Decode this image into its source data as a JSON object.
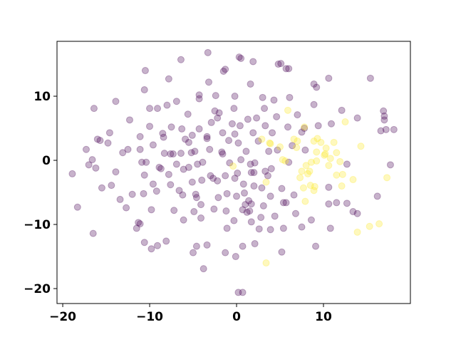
{
  "chart_data": {
    "type": "scatter",
    "xlim": [
      -20.66,
      20.0
    ],
    "ylim": [
      -22.33,
      18.56
    ],
    "xticks": [
      {
        "value": -20,
        "label": "−20"
      },
      {
        "value": -10,
        "label": "−10"
      },
      0,
      10
    ],
    "yticks": [
      {
        "value": -20,
        "label": "−20"
      },
      {
        "value": -10,
        "label": "−10"
      },
      0,
      10
    ],
    "series": [
      {
        "color": "#440154",
        "x": [
          -18.9,
          -18.3,
          -16.5,
          -16.4,
          -16.0,
          -15.7,
          -17.3,
          -17.0,
          -16.6,
          -16.2,
          -15.5,
          -14.6,
          -14.8,
          -14.4,
          -13.9,
          -13.9,
          -13.4,
          -13.1,
          -12.7,
          -12.3,
          -12.5,
          -12.0,
          -11.5,
          -11.3,
          -11.1,
          -11.1,
          -11.1,
          -10.9,
          -10.7,
          -10.6,
          -10.6,
          -10.5,
          -10.6,
          -10.4,
          -10.0,
          -10.0,
          -9.8,
          -9.8,
          -9.6,
          -9.6,
          -9.2,
          -9.1,
          -9.1,
          -8.9,
          -8.7,
          -8.5,
          -8.4,
          -8.3,
          -8.1,
          -8.0,
          -7.8,
          -7.8,
          -7.6,
          -7.6,
          -7.5,
          -7.3,
          -7.2,
          -6.9,
          -6.9,
          -6.6,
          -6.4,
          -6.4,
          -6.3,
          -6.2,
          -6.1,
          -6.1,
          -5.9,
          -5.6,
          -5.5,
          -5.5,
          -5.2,
          -5.1,
          -5.1,
          -5.0,
          -4.9,
          -4.8,
          -4.7,
          -4.6,
          -4.6,
          -4.5,
          -4.3,
          -4.3,
          -4.3,
          -4.1,
          -4.1,
          -4.0,
          -3.9,
          -3.8,
          -3.4,
          -3.4,
          -3.4,
          -3.3,
          -3.2,
          -3.1,
          -3.0,
          -2.9,
          -2.7,
          -2.6,
          -2.5,
          -2.4,
          -2.2,
          -2.2,
          -2.1,
          -2.0,
          -1.7,
          -1.6,
          -1.6,
          -1.5,
          -1.3,
          -1.3,
          -1.3,
          -1.2,
          -1.1,
          -1.1,
          -0.9,
          -0.8,
          -0.5,
          -0.3,
          -0.3,
          -0.2,
          -0.2,
          -0.2,
          -0.1,
          0,
          0.1,
          0.2,
          0.2,
          0.3,
          0.5,
          0.4,
          0.5,
          0.7,
          0.7,
          0.7,
          0.8,
          0.9,
          1.0,
          1.1,
          1.2,
          1.3,
          1.4,
          1.5,
          1.6,
          1.6,
          1.7,
          1.7,
          1.7,
          1.9,
          1.9,
          2.0,
          2.0,
          2.1,
          2.1,
          2.3,
          2.5,
          2.6,
          2.8,
          2.9,
          3.0,
          3.1,
          3.2,
          3.3,
          3.3,
          3.6,
          3.7,
          3.9,
          3.9,
          4.0,
          4.1,
          4.3,
          4.4,
          4.6,
          4.7,
          4.8,
          5.1,
          5.2,
          5.2,
          5.4,
          5.4,
          5.7,
          5.7,
          6.0,
          5.9,
          6.0,
          6.1,
          6.4,
          6.6,
          6.8,
          7.0,
          7.5,
          7.5,
          7.8,
          7.9,
          8.6,
          8.9,
          9.1,
          9.2,
          8.9,
          9.4,
          10.6,
          10.6,
          10.8,
          10.6,
          10.9,
          11.5,
          12.1,
          12.7,
          12.7,
          13.4,
          13.9,
          13.9,
          15.4,
          16.2,
          16.6,
          16.9,
          17.0,
          17.0,
          17.2,
          17.7,
          18.1
        ],
        "values": [
          -2.1,
          -7.3,
          -11.4,
          8.1,
          3.3,
          3.1,
          1.7,
          -0.7,
          0.1,
          -1.2,
          -4.3,
          4.3,
          2.7,
          -3.9,
          9.2,
          -1.8,
          -6.1,
          1.2,
          -7.4,
          6.3,
          1.7,
          -5.3,
          -10.6,
          -9.7,
          -9.9,
          3.7,
          1.7,
          -0.3,
          -5.2,
          -2.3,
          -12.8,
          14.0,
          11.0,
          -0.3,
          8.1,
          5.3,
          -13.8,
          -7.7,
          2.4,
          -3.7,
          -4.8,
          8.1,
          -13.3,
          -1.1,
          -1.3,
          4.2,
          3.6,
          1.1,
          -12.6,
          8.6,
          12.7,
          -2.2,
          1.0,
          -3.8,
          5.2,
          1.0,
          -7.8,
          9.2,
          -0.6,
          -4.7,
          15.7,
          1.1,
          4.9,
          -5.4,
          -9.3,
          -1.4,
          3.3,
          7.2,
          -1.1,
          2.8,
          1.2,
          3.9,
          -3.4,
          -14.4,
          -8.0,
          1.4,
          -5.3,
          -5.8,
          -13.4,
          -0.6,
          10.2,
          9.6,
          4.9,
          -6.9,
          -9.0,
          -3.1,
          -0.3,
          -16.9,
          3.4,
          3.7,
          -13.2,
          16.8,
          12.2,
          1.7,
          -2.4,
          5.9,
          -2.8,
          -7.6,
          7.7,
          10.1,
          -3.2,
          6.6,
          -5.8,
          7.4,
          1.3,
          1.0,
          4.3,
          13.9,
          14.2,
          -2.4,
          -14.4,
          -7.9,
          -10.6,
          -5.2,
          3.1,
          -0.4,
          5.7,
          -9.4,
          8.1,
          10.0,
          4.1,
          -2.8,
          -15.0,
          -5.6,
          -2.0,
          2.7,
          -20.6,
          16.1,
          15.9,
          5.4,
          0.1,
          -20.6,
          -7.7,
          -13.4,
          -3.7,
          -5.1,
          -6.9,
          1.4,
          -8.1,
          6.4,
          -6.3,
          -7.9,
          11.9,
          -0.6,
          -1.9,
          -9.6,
          -6.8,
          15.4,
          4.3,
          -1.9,
          -4.0,
          -0.4,
          -13.0,
          6.6,
          3.0,
          -10.7,
          -8.9,
          -4.3,
          9.8,
          -7.1,
          8.1,
          -1.7,
          5.4,
          -2.4,
          1.4,
          -10.8,
          -5.6,
          -1.3,
          4.3,
          9.4,
          -8.7,
          6.8,
          1.6,
          15.0,
          15.1,
          -4.4,
          -14.3,
          -6.6,
          -10.6,
          -6.6,
          14.3,
          14.3,
          5.2,
          -0.3,
          9.8,
          2.3,
          -5.4,
          -8.3,
          7.1,
          4.4,
          -10.4,
          5.0,
          1.6,
          -9.3,
          11.9,
          -13.4,
          11.4,
          8.7,
          5.4,
          12.8,
          -4.2,
          -10.6,
          -6.8,
          5.7,
          -6.6,
          7.8,
          -6.7,
          -0.6,
          -8.0,
          -8.3,
          6.6,
          12.8,
          -5.6,
          4.6,
          7.7,
          6.9,
          6.3,
          4.8,
          -0.7,
          4.8
        ]
      },
      {
        "color": "#fde725",
        "x": [
          -0.4,
          2.9,
          3.8,
          3.9,
          3.4,
          3.4,
          5.0,
          5.3,
          5.6,
          5.9,
          6.6,
          6.9,
          7.0,
          7.3,
          7.5,
          7.8,
          7.7,
          7.9,
          8.0,
          8.2,
          8.4,
          8.5,
          8.6,
          8.9,
          8.9,
          9.0,
          9.2,
          9.2,
          9.3,
          9.7,
          10.1,
          10.2,
          10.3,
          10.6,
          10.8,
          11.2,
          11.5,
          11.5,
          11.9,
          12.1,
          12.2,
          12.5,
          13.4,
          13.9,
          14.3,
          15.3,
          16.4,
          17.3
        ],
        "values": [
          -0.9,
          3.3,
          2.7,
          2.6,
          -3.4,
          -16.0,
          2.1,
          0.1,
          -0.1,
          7.8,
          3.3,
          2.0,
          3.0,
          -2.7,
          -1.7,
          5.2,
          -4.3,
          -6.4,
          -0.8,
          -2.1,
          -1.7,
          -3.9,
          -0.3,
          3.0,
          -4.7,
          -4.1,
          1.3,
          -0.1,
          3.4,
          2.8,
          0.8,
          1.0,
          1.9,
          -0.8,
          0.3,
          2.8,
          1.2,
          -2.3,
          -0.2,
          -4.0,
          -2.2,
          6.0,
          -3.0,
          -11.2,
          2.2,
          -10.3,
          -9.9,
          -2.7
        ]
      }
    ]
  }
}
